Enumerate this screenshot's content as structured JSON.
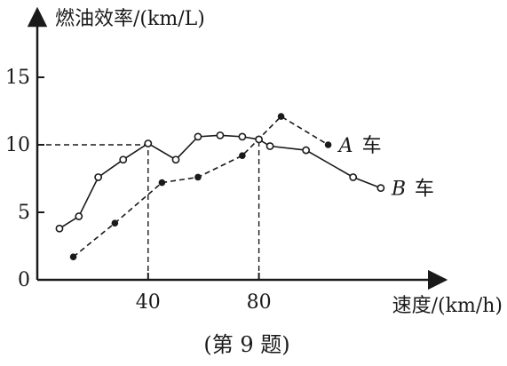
{
  "chart_data": {
    "type": "line",
    "ylabel": "燃油效率/(km/L)",
    "xlabel": "速度/(km/h)",
    "xlim": [
      0,
      112
    ],
    "ylim": [
      0,
      19
    ],
    "x_ticks": [
      "40",
      "80"
    ],
    "y_ticks": [
      "0",
      "5",
      "10",
      "15"
    ],
    "series": [
      {
        "name": "A",
        "suffix": "车",
        "style": "dashed",
        "marker": "filled",
        "points": [
          [
            13,
            1.7
          ],
          [
            28,
            4.2
          ],
          [
            45,
            7.2
          ],
          [
            58,
            7.6
          ],
          [
            74,
            9.2
          ],
          [
            88,
            12.1
          ],
          [
            105,
            10.0
          ]
        ]
      },
      {
        "name": "B",
        "suffix": "车",
        "style": "solid",
        "marker": "hollow",
        "points": [
          [
            8,
            3.8
          ],
          [
            15,
            4.7
          ],
          [
            22,
            7.6
          ],
          [
            31,
            8.9
          ],
          [
            40,
            10.1
          ],
          [
            50,
            8.9
          ],
          [
            58,
            10.6
          ],
          [
            66,
            10.7
          ],
          [
            74,
            10.6
          ],
          [
            80,
            10.4
          ],
          [
            84,
            9.9
          ],
          [
            97,
            9.6
          ],
          [
            114,
            7.6
          ],
          [
            124,
            6.8
          ]
        ]
      }
    ],
    "reference_lines": [
      {
        "x": 40,
        "y": 10
      },
      {
        "x": 80
      }
    ]
  },
  "caption": "(第 9 题)"
}
